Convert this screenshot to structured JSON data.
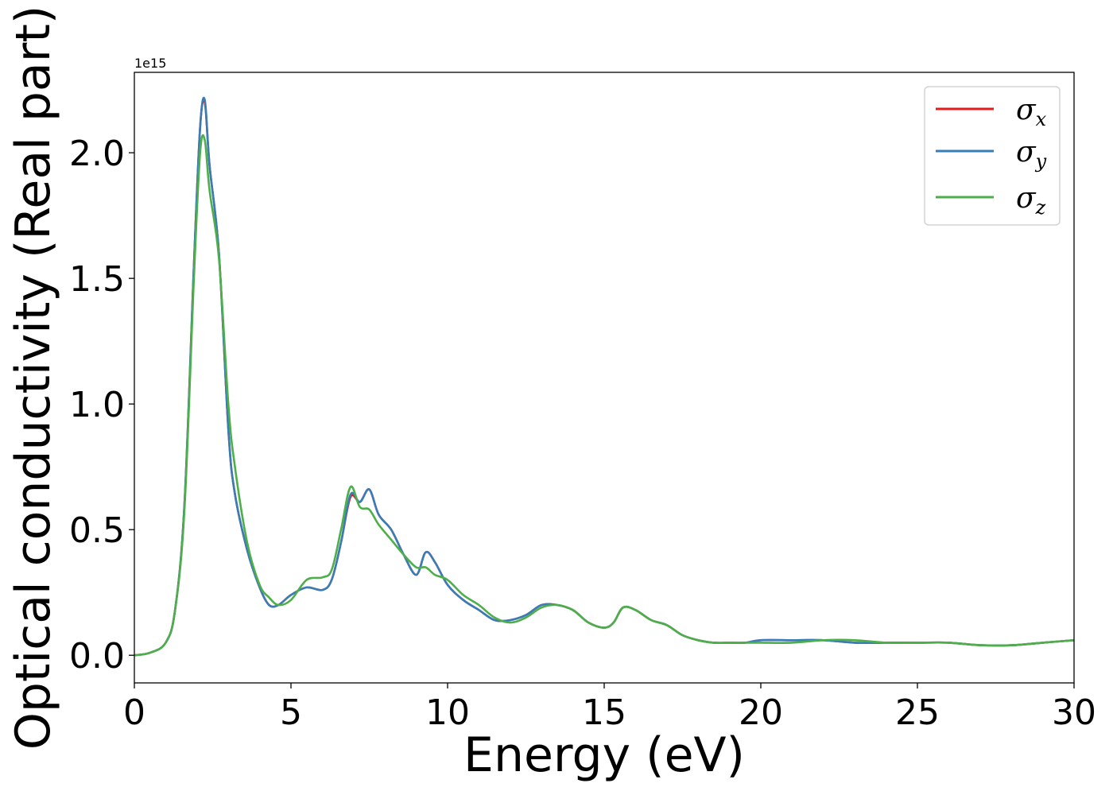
{
  "chart_data": {
    "type": "line",
    "xlabel": "Energy (eV)",
    "ylabel": "Optical conductivity (Real part)",
    "y_offset_label": "1e15",
    "xlim": [
      0,
      30
    ],
    "ylim": [
      -0.11,
      2.32
    ],
    "x_ticks": [
      0,
      5,
      10,
      15,
      20,
      25,
      30
    ],
    "x_tick_labels": [
      "0",
      "5",
      "10",
      "15",
      "20",
      "25",
      "30"
    ],
    "y_ticks": [
      0.0,
      0.5,
      1.0,
      1.5,
      2.0
    ],
    "y_tick_labels": [
      "0.0",
      "0.5",
      "1.0",
      "1.5",
      "2.0"
    ],
    "grid": false,
    "legend_position": "top-right",
    "x": [
      0,
      0.5,
      1.0,
      1.3,
      1.6,
      1.9,
      2.1,
      2.25,
      2.4,
      2.7,
      3.0,
      3.2,
      3.6,
      4.0,
      4.3,
      4.6,
      5.0,
      5.5,
      6.0,
      6.3,
      6.6,
      6.9,
      7.2,
      7.5,
      7.8,
      8.2,
      8.6,
      9.0,
      9.3,
      9.6,
      10.0,
      10.5,
      11.0,
      11.5,
      12.0,
      12.5,
      13.0,
      13.5,
      14.0,
      14.5,
      15.0,
      15.3,
      15.6,
      16.0,
      16.5,
      17.0,
      17.5,
      18.0,
      18.5,
      19.0,
      19.5,
      20.0,
      21.0,
      22.0,
      23.0,
      24.0,
      25.0,
      26.0,
      27.0,
      28.0,
      29.0,
      30.0
    ],
    "series": [
      {
        "name": "σx",
        "color": "#e41a1c",
        "values": [
          0.0,
          0.01,
          0.05,
          0.18,
          0.6,
          1.55,
          2.1,
          2.2,
          1.95,
          1.6,
          0.9,
          0.65,
          0.42,
          0.27,
          0.2,
          0.2,
          0.24,
          0.27,
          0.26,
          0.3,
          0.45,
          0.63,
          0.61,
          0.66,
          0.56,
          0.5,
          0.4,
          0.32,
          0.41,
          0.37,
          0.28,
          0.22,
          0.18,
          0.14,
          0.14,
          0.16,
          0.2,
          0.2,
          0.18,
          0.13,
          0.11,
          0.13,
          0.19,
          0.18,
          0.14,
          0.12,
          0.08,
          0.06,
          0.05,
          0.05,
          0.05,
          0.06,
          0.06,
          0.06,
          0.05,
          0.05,
          0.05,
          0.05,
          0.04,
          0.04,
          0.05,
          0.06
        ]
      },
      {
        "name": "σy",
        "color": "#377eb8",
        "values": [
          0.0,
          0.01,
          0.05,
          0.18,
          0.6,
          1.55,
          2.1,
          2.21,
          1.95,
          1.6,
          0.9,
          0.65,
          0.42,
          0.27,
          0.2,
          0.2,
          0.24,
          0.27,
          0.26,
          0.3,
          0.45,
          0.64,
          0.61,
          0.66,
          0.56,
          0.5,
          0.4,
          0.32,
          0.41,
          0.37,
          0.28,
          0.22,
          0.18,
          0.14,
          0.14,
          0.16,
          0.2,
          0.2,
          0.18,
          0.13,
          0.11,
          0.13,
          0.19,
          0.18,
          0.14,
          0.12,
          0.08,
          0.06,
          0.05,
          0.05,
          0.05,
          0.06,
          0.06,
          0.06,
          0.05,
          0.05,
          0.05,
          0.05,
          0.04,
          0.04,
          0.05,
          0.06
        ]
      },
      {
        "name": "σz",
        "color": "#4daf4a",
        "values": [
          0.0,
          0.01,
          0.05,
          0.18,
          0.58,
          1.5,
          2.0,
          2.05,
          1.85,
          1.58,
          1.0,
          0.76,
          0.45,
          0.28,
          0.23,
          0.2,
          0.22,
          0.3,
          0.31,
          0.34,
          0.5,
          0.67,
          0.59,
          0.58,
          0.52,
          0.46,
          0.4,
          0.35,
          0.35,
          0.32,
          0.3,
          0.24,
          0.2,
          0.15,
          0.13,
          0.15,
          0.19,
          0.2,
          0.18,
          0.13,
          0.11,
          0.13,
          0.19,
          0.18,
          0.14,
          0.12,
          0.08,
          0.06,
          0.05,
          0.05,
          0.05,
          0.05,
          0.05,
          0.06,
          0.06,
          0.05,
          0.05,
          0.05,
          0.04,
          0.04,
          0.05,
          0.06
        ]
      }
    ]
  },
  "legend": [
    {
      "base": "σ",
      "sub": "x"
    },
    {
      "base": "σ",
      "sub": "y"
    },
    {
      "base": "σ",
      "sub": "z"
    }
  ]
}
